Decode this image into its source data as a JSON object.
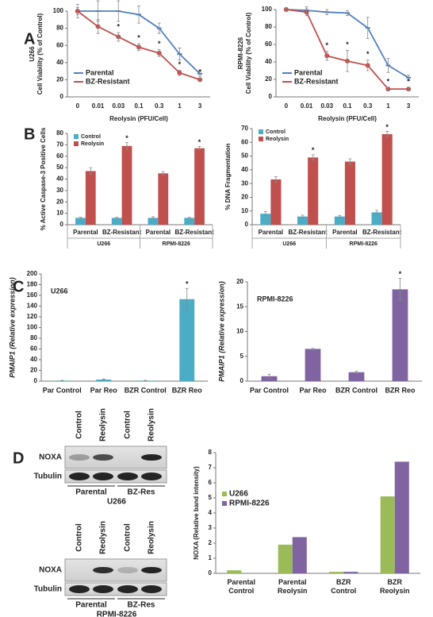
{
  "figure": {
    "panel_labels": [
      "A",
      "B",
      "C",
      "D"
    ]
  },
  "chart_data": [
    {
      "type": "line",
      "ylabel": [
        "U266",
        "Cell Viability (% of Control)"
      ],
      "xlabel": "Reolysin (PFU/Cell)",
      "categories": [
        "0",
        "0.01",
        "0.03",
        "0.1",
        "0.3",
        "1",
        "3"
      ],
      "ylim": [
        0,
        100
      ],
      "yticks": [
        0,
        20,
        40,
        60,
        80,
        100
      ],
      "legend": "lower left",
      "series": [
        {
          "name": "Parental",
          "color": "#4f81bd",
          "marker": "dash",
          "values": [
            100,
            100,
            100,
            96,
            80,
            50,
            27
          ],
          "errors": [
            8,
            12,
            12,
            10,
            6,
            7,
            3
          ]
        },
        {
          "name": "BZ-Resistant",
          "color": "#c0504d",
          "marker": "circle",
          "values": [
            100,
            82,
            70,
            58,
            51,
            28,
            20
          ],
          "errors": [
            4,
            8,
            5,
            4,
            4,
            3,
            2
          ],
          "significance": [
            null,
            null,
            "*",
            "*",
            "*",
            "*",
            "*"
          ]
        }
      ]
    },
    {
      "type": "line",
      "ylabel": [
        "RPMI-8226",
        "Cell Viability (% of Control)"
      ],
      "xlabel": "Reolysin (PFU/Cell)",
      "categories": [
        "0",
        "0.01",
        "0.03",
        "0.1",
        "0.3",
        "1",
        "3"
      ],
      "ylim": [
        0,
        100
      ],
      "yticks": [
        0,
        20,
        40,
        60,
        80,
        100
      ],
      "legend": "lower left",
      "series": [
        {
          "name": "Parental",
          "color": "#4f81bd",
          "marker": "dash",
          "values": [
            100,
            99,
            97,
            96,
            79,
            36,
            22
          ],
          "errors": [
            2,
            4,
            3,
            3,
            12,
            8,
            3
          ]
        },
        {
          "name": "BZ-Resistant",
          "color": "#c0504d",
          "marker": "circle",
          "values": [
            100,
            97,
            47,
            41,
            36,
            9,
            9
          ],
          "errors": [
            2,
            4,
            5,
            12,
            6,
            2,
            2
          ],
          "significance": [
            null,
            null,
            "*",
            "*",
            "*",
            "*",
            "*"
          ]
        }
      ]
    },
    {
      "type": "bar",
      "ylabel": "% Active Caspase-3 Positive Cells",
      "categories": [
        "Parental",
        "BZ-Resistant",
        "Parental",
        "BZ-Resistant"
      ],
      "groups": [
        "U266",
        "RPMI-8226"
      ],
      "ylim": [
        0,
        80
      ],
      "yticks": [
        0,
        10,
        20,
        30,
        40,
        50,
        60,
        70,
        80
      ],
      "legend": "upper left",
      "series": [
        {
          "name": "Control",
          "color": "#4bacc6",
          "values": [
            6,
            6,
            6,
            6
          ],
          "errors": [
            0.5,
            0.5,
            1,
            0.5
          ]
        },
        {
          "name": "Reolysin",
          "color": "#c0504d",
          "values": [
            47,
            69,
            45,
            67
          ],
          "errors": [
            3,
            3,
            1.5,
            1.5
          ],
          "significance": [
            null,
            "*",
            null,
            "*"
          ]
        }
      ]
    },
    {
      "type": "bar",
      "ylabel": "% DNA Fragmentation",
      "categories": [
        "Parental",
        "BZ-Resistant",
        "Parental",
        "BZ-Resistant"
      ],
      "groups": [
        "U266",
        "RPMI-8226"
      ],
      "ylim": [
        0,
        70
      ],
      "yticks": [
        0,
        10,
        20,
        30,
        40,
        50,
        60,
        70
      ],
      "legend": "upper left",
      "series": [
        {
          "name": "Control",
          "color": "#4bacc6",
          "values": [
            8,
            6,
            6,
            9
          ],
          "errors": [
            1.5,
            1,
            0.8,
            1.5
          ]
        },
        {
          "name": "Reolysin",
          "color": "#c0504d",
          "values": [
            33,
            49,
            46,
            66
          ],
          "errors": [
            2,
            2,
            2,
            2
          ],
          "significance": [
            null,
            "*",
            null,
            "*"
          ]
        }
      ]
    },
    {
      "type": "bar",
      "ylabel": "PMAIP1 (Relative expression)",
      "label": "U266",
      "categories": [
        "Par Control",
        "Par Reo",
        "BZR Control",
        "BZR Reo"
      ],
      "ylim": [
        0,
        200
      ],
      "yticks": [
        0,
        20,
        40,
        60,
        80,
        100,
        120,
        140,
        160,
        180,
        200
      ],
      "series": [
        {
          "color": "#4bacc6",
          "values": [
            1,
            3,
            1,
            153
          ],
          "errors": [
            0.5,
            1,
            0.5,
            20
          ],
          "significance": [
            null,
            null,
            null,
            "*"
          ]
        }
      ]
    },
    {
      "type": "bar",
      "ylabel": "PMAIP1 (Relative expression)",
      "label": "RPMI-8226",
      "categories": [
        "Par Control",
        "Par Reo",
        "BZR Control",
        "BZR Reo"
      ],
      "ylim": [
        0,
        20
      ],
      "yticks": [
        0,
        5,
        10,
        15,
        20
      ],
      "series": [
        {
          "color": "#8064a2",
          "values": [
            1,
            6.5,
            1.8,
            18.5
          ],
          "errors": [
            0.4,
            0.1,
            0.2,
            2.2
          ],
          "significance": [
            null,
            null,
            null,
            "*"
          ]
        }
      ]
    },
    {
      "type": "bar",
      "ylabel": "NOXA (Relative band intensity)",
      "categories": [
        "Parental Control",
        "Parental Reolysin",
        "BZR Control",
        "BZR Reolysin"
      ],
      "ylim": [
        0,
        8
      ],
      "yticks": [
        0,
        1,
        2,
        3,
        4,
        5,
        6,
        7,
        8
      ],
      "legend": "upper left",
      "series": [
        {
          "name": "U266",
          "color": "#9bbb59",
          "values": [
            0.2,
            1.9,
            0.1,
            5.1
          ]
        },
        {
          "name": "RPMI-8226",
          "color": "#8064a2",
          "values": [
            0,
            2.4,
            0.1,
            7.4
          ]
        }
      ]
    }
  ],
  "blots": [
    {
      "cell_line": "U266",
      "columns": [
        "Control",
        "Reolysin",
        "Control",
        "Reolysin"
      ],
      "rows": [
        "NOXA",
        "Tubulin"
      ],
      "groups": [
        "Parental",
        "BZ-Res"
      ]
    },
    {
      "cell_line": "RPMI-8226",
      "columns": [
        "Control",
        "Reolysin",
        "Control",
        "Reolysin"
      ],
      "rows": [
        "NOXA",
        "Tubulin"
      ],
      "groups": [
        "Parental",
        "BZ-Res"
      ]
    }
  ]
}
